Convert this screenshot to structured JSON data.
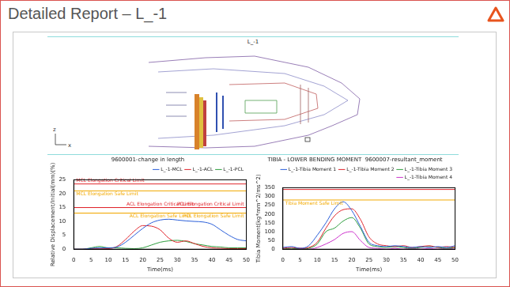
{
  "page": {
    "title": "Detailed Report – L_-1",
    "panel": {
      "title": "L_-1",
      "axes": [
        "z",
        "x"
      ]
    }
  },
  "chart_data": [
    {
      "type": "line",
      "title": "9600001-change in length",
      "x_label": "Time(ms)",
      "y_label": "Relative Displacement/Initial(mm)(%)",
      "x": [
        0,
        2.5,
        5,
        7.5,
        10,
        12.5,
        15,
        17.5,
        20,
        22.5,
        25,
        27.5,
        30,
        32.5,
        35,
        37.5,
        40,
        42.5,
        45,
        47.5,
        50
      ],
      "xlim": [
        0,
        50
      ],
      "xticks": [
        0,
        5,
        10,
        15,
        20,
        25,
        30,
        35,
        40,
        45,
        50
      ],
      "ylim": [
        0,
        25
      ],
      "yticks": [
        0,
        5,
        10,
        15,
        20,
        25
      ],
      "grid": false,
      "legend": "top",
      "series": [
        {
          "name": "L_-1-MCL",
          "color": "#2b5fd9",
          "values": [
            0,
            0,
            0.3,
            0.5,
            0.5,
            0.8,
            2.5,
            5,
            7.5,
            9.5,
            10.5,
            10.8,
            10.5,
            10.2,
            10,
            9.8,
            9,
            7,
            5,
            3.5,
            3
          ]
        },
        {
          "name": "L_-1-ACL",
          "color": "#e0262d",
          "values": [
            0,
            0,
            0.2,
            0.3,
            0.2,
            1,
            3.5,
            6.5,
            8.5,
            8.3,
            7,
            4,
            2.5,
            3,
            2,
            1,
            0.5,
            0.3,
            0.2,
            0.2,
            0.2
          ]
        },
        {
          "name": "L_-1-PCL",
          "color": "#2e9e3e",
          "values": [
            0,
            0,
            0.5,
            1,
            0.5,
            0.5,
            0.3,
            0.2,
            0.5,
            1.5,
            2.5,
            3,
            3.2,
            2.8,
            2,
            1.5,
            1,
            0.8,
            0.5,
            0.5,
            0.5
          ]
        }
      ],
      "reference_lines": [
        {
          "value": 23.5,
          "label": "MCL Elongation Critical Limit",
          "color": "#e0262d"
        },
        {
          "value": 21,
          "label": "MCL Elongation Safe Limit",
          "color": "#f2a900"
        },
        {
          "value": 15,
          "label": "ACL Elongation Critical Limit",
          "color": "#e0262d"
        },
        {
          "value": 15,
          "label": "PCL Elongation Critical Limit",
          "color": "#e0262d"
        },
        {
          "value": 13,
          "label": "ACL Elongation Safe Limit",
          "color": "#f2a900"
        },
        {
          "value": 13,
          "label": "PCL Elongation Safe Limit",
          "color": "#f2a900"
        }
      ]
    },
    {
      "type": "line",
      "title": "TIBIA - LOWER BENDING MOMENT  9600007-resultant_moment",
      "x_label": "Time(ms)",
      "y_label": "Tibia Moment(kg*mm^2/ms^2)",
      "x": [
        0,
        2.5,
        5,
        7.5,
        10,
        12.5,
        15,
        17.5,
        20,
        22.5,
        25,
        27.5,
        30,
        32.5,
        35,
        37.5,
        40,
        42.5,
        45,
        47.5,
        50
      ],
      "xlim": [
        0,
        50
      ],
      "xticks": [
        0,
        5,
        10,
        15,
        20,
        25,
        30,
        35,
        40,
        45,
        50
      ],
      "ylim": [
        0,
        350
      ],
      "yticks": [
        0,
        50,
        100,
        150,
        200,
        250,
        300,
        350
      ],
      "grid": false,
      "legend": "top",
      "series": [
        {
          "name": "L_-1-Tibia Moment 1",
          "color": "#2b5fd9",
          "values": [
            10,
            15,
            5,
            20,
            80,
            150,
            230,
            270,
            220,
            130,
            40,
            20,
            15,
            20,
            15,
            10,
            15,
            10,
            15,
            10,
            20
          ]
        },
        {
          "name": "L_-1-Tibia Moment 2",
          "color": "#e0262d",
          "values": [
            5,
            10,
            5,
            10,
            40,
            120,
            190,
            225,
            230,
            170,
            70,
            30,
            20,
            15,
            20,
            10,
            15,
            20,
            10,
            15,
            10
          ]
        },
        {
          "name": "L_-1-Tibia Moment 3",
          "color": "#2e9e3e",
          "values": [
            0,
            5,
            0,
            5,
            30,
            100,
            120,
            160,
            180,
            120,
            30,
            15,
            10,
            15,
            10,
            5,
            10,
            15,
            10,
            5,
            10
          ]
        },
        {
          "name": "L_-1-Tibia Moment 4",
          "color": "#cc33cc",
          "values": [
            0,
            0,
            5,
            0,
            10,
            30,
            55,
            90,
            100,
            50,
            10,
            5,
            0,
            5,
            0,
            5,
            0,
            5,
            0,
            5,
            0
          ]
        }
      ],
      "reference_lines": [
        {
          "value": 340,
          "color": "#e0262d"
        },
        {
          "value": 280,
          "label": "Tibia Moment Safe Limit",
          "color": "#f2a900"
        }
      ]
    }
  ]
}
